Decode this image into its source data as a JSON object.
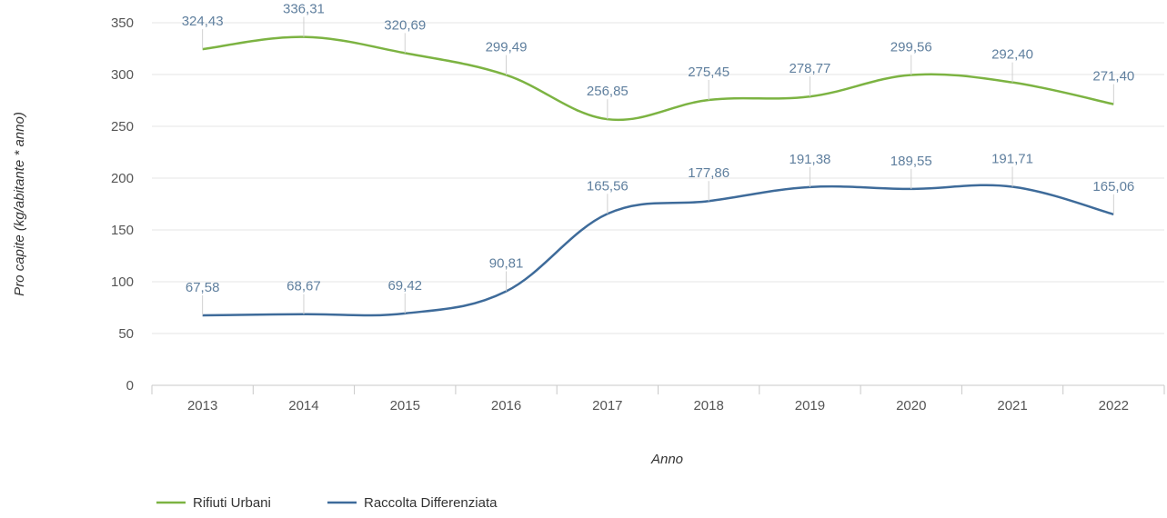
{
  "chart_data": {
    "type": "line",
    "xlabel": "Anno",
    "ylabel": "Pro capite (kg/abitante * anno)",
    "categories": [
      "2013",
      "2014",
      "2015",
      "2016",
      "2017",
      "2018",
      "2019",
      "2020",
      "2021",
      "2022"
    ],
    "ylim": [
      0,
      350
    ],
    "yticks": [
      0,
      50,
      100,
      150,
      200,
      250,
      300,
      350
    ],
    "grid": true,
    "legend_position": "bottom-left",
    "series": [
      {
        "name": "Rifiuti Urbani",
        "color": "#7cb342",
        "values": [
          324.43,
          336.31,
          320.69,
          299.49,
          256.85,
          275.45,
          278.77,
          299.56,
          292.4,
          271.4
        ],
        "labels": [
          "324,43",
          "336,31",
          "320,69",
          "299,49",
          "256,85",
          "275,45",
          "278,77",
          "299,56",
          "292,40",
          "271,40"
        ]
      },
      {
        "name": "Raccolta Differenziata",
        "color": "#3e6b9a",
        "values": [
          67.58,
          68.67,
          69.42,
          90.81,
          165.56,
          177.86,
          191.38,
          189.55,
          191.71,
          165.06
        ],
        "labels": [
          "67,58",
          "68,67",
          "69,42",
          "90,81",
          "165,56",
          "177,86",
          "191,38",
          "189,55",
          "191,71",
          "165,06"
        ]
      }
    ]
  }
}
